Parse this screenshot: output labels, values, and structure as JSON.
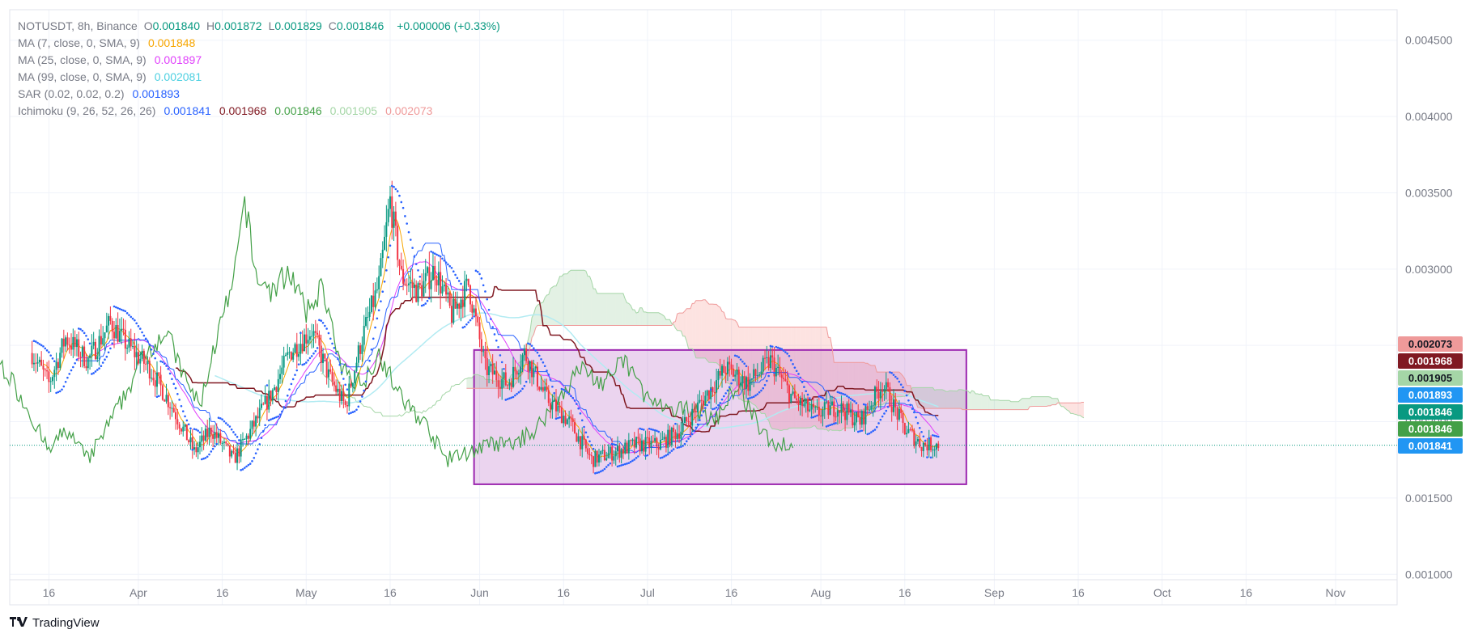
{
  "header": {
    "symbol": "NOTUSDT, 8h, Binance",
    "ohlc": [
      {
        "k": "O",
        "v": "0.001840"
      },
      {
        "k": "H",
        "v": "0.001872"
      },
      {
        "k": "L",
        "v": "0.001829"
      },
      {
        "k": "C",
        "v": "0.001846"
      }
    ],
    "change": "+0.000006 (+0.33%)",
    "change_color": "#089981"
  },
  "indicators": [
    {
      "label": "MA (7, close, 0, SMA, 9)",
      "values": [
        {
          "text": "0.001848",
          "color": "#f7a600"
        }
      ]
    },
    {
      "label": "MA (25, close, 0, SMA, 9)",
      "values": [
        {
          "text": "0.001897",
          "color": "#e040fb"
        }
      ]
    },
    {
      "label": "MA (99, close, 0, SMA, 9)",
      "values": [
        {
          "text": "0.002081",
          "color": "#4dd0e1"
        }
      ]
    },
    {
      "label": "SAR (0.02, 0.02, 0.2)",
      "values": [
        {
          "text": "0.001893",
          "color": "#2962ff"
        }
      ]
    },
    {
      "label": "Ichimoku (9, 26, 52, 26, 26)",
      "values": [
        {
          "text": "0.001841",
          "color": "#2962ff"
        },
        {
          "text": "0.001968",
          "color": "#801922"
        },
        {
          "text": "0.001846",
          "color": "#43a047"
        },
        {
          "text": "0.001905",
          "color": "#a5d6a7"
        },
        {
          "text": "0.002073",
          "color": "#ef9a9a"
        }
      ]
    }
  ],
  "brand": {
    "name": "TradingView",
    "logo": "tradingview-logo"
  },
  "chart_data": {
    "type": "candlestick",
    "x_ticks": [
      "16",
      "Apr",
      "16",
      "May",
      "16",
      "Jun",
      "16",
      "Jul",
      "16",
      "Aug",
      "16",
      "Sep",
      "16",
      "Oct",
      "16",
      "Nov"
    ],
    "x_tick_dates": [
      "2024-03-16",
      "2024-04-01",
      "2024-04-16",
      "2024-05-01",
      "2024-05-16",
      "2024-06-01",
      "2024-06-16",
      "2024-07-01",
      "2024-07-16",
      "2024-08-01",
      "2024-08-16",
      "2024-09-01",
      "2024-09-16",
      "2024-10-01",
      "2024-10-16",
      "2024-11-01"
    ],
    "y_ticks": [
      "0.001000",
      "0.001500",
      "0.002000",
      "0.002500",
      "0.003000",
      "0.003500",
      "0.004000",
      "0.004500"
    ],
    "ylim": [
      0.0008,
      0.0047
    ],
    "price_labels": [
      {
        "text": "0.002073",
        "value": 0.002073,
        "bg": "#ef9a9a",
        "fg": "#131722"
      },
      {
        "text": "0.001968",
        "value": 0.001968,
        "bg": "#801922",
        "fg": "#ffffff"
      },
      {
        "text": "0.001905",
        "value": 0.001905,
        "bg": "#a5d6a7",
        "fg": "#131722"
      },
      {
        "text": "0.001893",
        "value": 0.001893,
        "bg": "#2196f3",
        "fg": "#ffffff"
      },
      {
        "text": "0.001846",
        "value": 0.001846,
        "bg": "#089981",
        "fg": "#ffffff"
      },
      {
        "text": "0.001846",
        "value": 0.001846,
        "bg": "#43a047",
        "fg": "#ffffff"
      },
      {
        "text": "0.001841",
        "value": 0.001841,
        "bg": "#2196f3",
        "fg": "#ffffff"
      }
    ],
    "last_price": 0.001846,
    "rectangle": {
      "start": "2024-05-31",
      "end": "2024-08-27",
      "top": 0.00247,
      "bottom": 0.00159,
      "color": "#9c27b0"
    },
    "price_path": [
      {
        "x": "2024-03-13",
        "y": 0.00245
      },
      {
        "x": "2024-03-16",
        "y": 0.00225
      },
      {
        "x": "2024-03-19",
        "y": 0.00255
      },
      {
        "x": "2024-03-23",
        "y": 0.0024
      },
      {
        "x": "2024-03-27",
        "y": 0.00265
      },
      {
        "x": "2024-03-30",
        "y": 0.0025
      },
      {
        "x": "2024-04-03",
        "y": 0.00235
      },
      {
        "x": "2024-04-07",
        "y": 0.0021
      },
      {
        "x": "2024-04-11",
        "y": 0.0018
      },
      {
        "x": "2024-04-14",
        "y": 0.00195
      },
      {
        "x": "2024-04-18",
        "y": 0.00175
      },
      {
        "x": "2024-04-22",
        "y": 0.002
      },
      {
        "x": "2024-04-25",
        "y": 0.0022
      },
      {
        "x": "2024-04-28",
        "y": 0.00245
      },
      {
        "x": "2024-05-02",
        "y": 0.0026
      },
      {
        "x": "2024-05-05",
        "y": 0.0023
      },
      {
        "x": "2024-05-08",
        "y": 0.0021
      },
      {
        "x": "2024-05-11",
        "y": 0.00255
      },
      {
        "x": "2024-05-14",
        "y": 0.0029
      },
      {
        "x": "2024-05-16",
        "y": 0.00345
      },
      {
        "x": "2024-05-18",
        "y": 0.00295
      },
      {
        "x": "2024-05-21",
        "y": 0.00285
      },
      {
        "x": "2024-05-24",
        "y": 0.003
      },
      {
        "x": "2024-05-27",
        "y": 0.0027
      },
      {
        "x": "2024-05-30",
        "y": 0.0029
      },
      {
        "x": "2024-06-02",
        "y": 0.00235
      },
      {
        "x": "2024-06-06",
        "y": 0.00225
      },
      {
        "x": "2024-06-09",
        "y": 0.00245
      },
      {
        "x": "2024-06-13",
        "y": 0.00215
      },
      {
        "x": "2024-06-17",
        "y": 0.002
      },
      {
        "x": "2024-06-21",
        "y": 0.00175
      },
      {
        "x": "2024-06-25",
        "y": 0.0018
      },
      {
        "x": "2024-06-29",
        "y": 0.00185
      },
      {
        "x": "2024-07-03",
        "y": 0.00185
      },
      {
        "x": "2024-07-07",
        "y": 0.00195
      },
      {
        "x": "2024-07-11",
        "y": 0.00215
      },
      {
        "x": "2024-07-15",
        "y": 0.00235
      },
      {
        "x": "2024-07-19",
        "y": 0.00225
      },
      {
        "x": "2024-07-23",
        "y": 0.0024
      },
      {
        "x": "2024-07-27",
        "y": 0.00215
      },
      {
        "x": "2024-07-31",
        "y": 0.00205
      },
      {
        "x": "2024-08-04",
        "y": 0.0021
      },
      {
        "x": "2024-08-08",
        "y": 0.002
      },
      {
        "x": "2024-08-12",
        "y": 0.00225
      },
      {
        "x": "2024-08-16",
        "y": 0.00195
      },
      {
        "x": "2024-08-19",
        "y": 0.00185
      },
      {
        "x": "2024-08-22",
        "y": 0.00185
      }
    ]
  }
}
